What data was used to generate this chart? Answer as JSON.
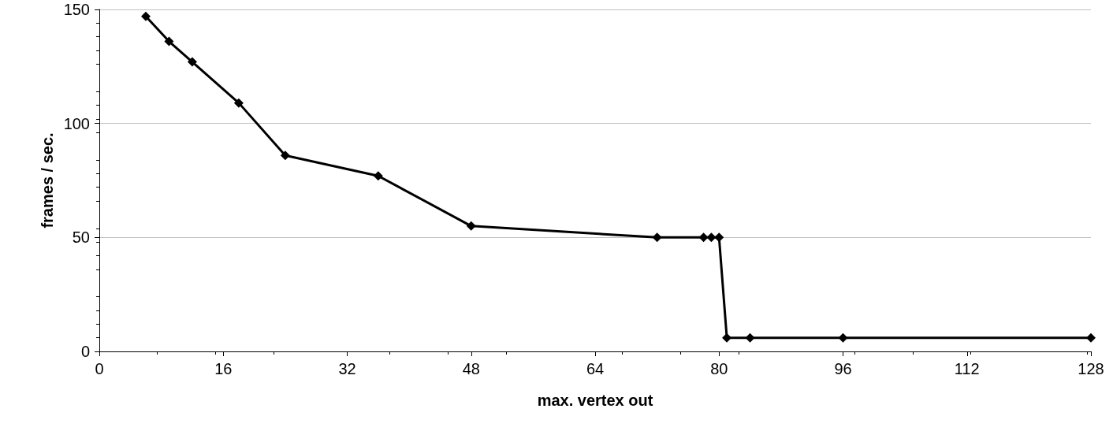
{
  "chart_data": {
    "type": "line",
    "xlabel": "max. vertex out",
    "ylabel": "frames / sec.",
    "x": [
      6,
      9,
      12,
      18,
      24,
      36,
      48,
      72,
      78,
      79,
      80,
      81,
      84,
      96,
      128
    ],
    "series": [
      {
        "color": "#000000",
        "values": [
          147,
          136,
          127,
          109,
          86,
          77,
          55,
          50,
          50,
          50,
          50,
          6,
          6,
          6,
          6
        ]
      }
    ],
    "xlim": [
      0,
      128
    ],
    "xticks": [
      0,
      16,
      32,
      48,
      64,
      80,
      96,
      112,
      128
    ],
    "ylim": [
      0,
      150
    ],
    "yticks": [
      0,
      50,
      100,
      150
    ],
    "grid": "y",
    "marker": "diamond",
    "line_style": "solid"
  }
}
